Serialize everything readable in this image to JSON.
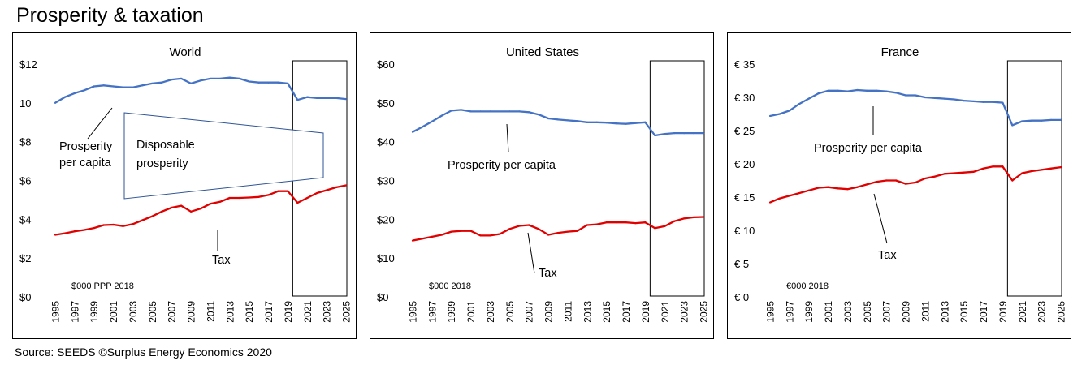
{
  "title": "Prosperity & taxation",
  "source": "Source: SEEDS ©Surplus Energy Economics 2020",
  "colors": {
    "prosperity": "#4472C4",
    "tax": "#E00000",
    "frame": "#000000",
    "callout": "#2F5597"
  },
  "chart_data": [
    {
      "type": "line",
      "title": "World",
      "unit_note": "$000 PPP 2018",
      "x": [
        1995,
        1996,
        1997,
        1998,
        1999,
        2000,
        2001,
        2002,
        2003,
        2004,
        2005,
        2006,
        2007,
        2008,
        2009,
        2010,
        2011,
        2012,
        2013,
        2014,
        2015,
        2016,
        2017,
        2018,
        2019,
        2020,
        2021,
        2022,
        2023,
        2024,
        2025
      ],
      "x_ticks": [
        "1995",
        "1997",
        "1999",
        "2001",
        "2003",
        "2005",
        "2007",
        "2009",
        "2011",
        "2013",
        "2015",
        "2017",
        "2019",
        "2021",
        "2023",
        "2025"
      ],
      "ylim": [
        0,
        12
      ],
      "y_ticks": [
        0,
        2,
        4,
        6,
        8,
        10,
        12
      ],
      "y_tick_labels": [
        "$0",
        "$2",
        "$4",
        "$6",
        "$8",
        "10",
        "$12"
      ],
      "highlight_from": 2019.5,
      "series": [
        {
          "name": "Prosperity per capita",
          "key": "prosperity",
          "values": [
            10.0,
            10.3,
            10.5,
            10.65,
            10.85,
            10.9,
            10.85,
            10.8,
            10.8,
            10.9,
            11.0,
            11.05,
            11.2,
            11.25,
            11.0,
            11.15,
            11.25,
            11.25,
            11.3,
            11.25,
            11.1,
            11.05,
            11.05,
            11.05,
            11.0,
            10.15,
            10.3,
            10.25,
            10.25,
            10.25,
            10.2
          ]
        },
        {
          "name": "Tax",
          "key": "tax",
          "values": [
            3.2,
            3.28,
            3.38,
            3.45,
            3.55,
            3.7,
            3.72,
            3.65,
            3.75,
            3.95,
            4.15,
            4.4,
            4.6,
            4.7,
            4.4,
            4.55,
            4.8,
            4.9,
            5.1,
            5.1,
            5.12,
            5.15,
            5.25,
            5.45,
            5.45,
            4.85,
            5.1,
            5.35,
            5.5,
            5.65,
            5.75
          ]
        }
      ],
      "annotations": [
        {
          "text_lines": [
            "Prosperity",
            "per capita"
          ],
          "target": "prosperity"
        },
        {
          "text_lines": [
            "Tax"
          ],
          "target": "tax"
        },
        {
          "text_lines": [
            "Disposable",
            "prosperity"
          ],
          "target": "gap"
        }
      ]
    },
    {
      "type": "line",
      "title": "United States",
      "unit_note": "$000 2018",
      "x": [
        1995,
        1996,
        1997,
        1998,
        1999,
        2000,
        2001,
        2002,
        2003,
        2004,
        2005,
        2006,
        2007,
        2008,
        2009,
        2010,
        2011,
        2012,
        2013,
        2014,
        2015,
        2016,
        2017,
        2018,
        2019,
        2020,
        2021,
        2022,
        2023,
        2024,
        2025
      ],
      "x_ticks": [
        "1995",
        "1997",
        "1999",
        "2001",
        "2003",
        "2005",
        "2007",
        "2009",
        "2011",
        "2013",
        "2015",
        "2017",
        "2019",
        "2021",
        "2023",
        "2025"
      ],
      "ylim": [
        0,
        60
      ],
      "y_ticks": [
        0,
        10,
        20,
        30,
        40,
        50,
        60
      ],
      "y_tick_labels": [
        "$0",
        "$10",
        "$20",
        "$30",
        "$40",
        "$50",
        "$60"
      ],
      "highlight_from": 2019.5,
      "series": [
        {
          "name": "Prosperity per capita",
          "key": "prosperity",
          "values": [
            42.5,
            43.8,
            45.2,
            46.7,
            48.0,
            48.2,
            47.8,
            47.8,
            47.8,
            47.8,
            47.8,
            47.8,
            47.6,
            47.0,
            46.0,
            45.7,
            45.5,
            45.3,
            45.0,
            45.0,
            44.9,
            44.7,
            44.6,
            44.8,
            45.0,
            41.6,
            42.0,
            42.2,
            42.2,
            42.2,
            42.2
          ]
        },
        {
          "name": "Tax",
          "key": "tax",
          "values": [
            14.5,
            15.0,
            15.5,
            16.0,
            16.8,
            17.0,
            17.0,
            15.8,
            15.8,
            16.2,
            17.5,
            18.3,
            18.5,
            17.5,
            16.0,
            16.5,
            16.8,
            17.0,
            18.5,
            18.7,
            19.2,
            19.2,
            19.2,
            19.0,
            19.2,
            17.7,
            18.2,
            19.5,
            20.2,
            20.5,
            20.6
          ]
        }
      ],
      "annotations": [
        {
          "text_lines": [
            "Prosperity per capita"
          ],
          "target": "prosperity"
        },
        {
          "text_lines": [
            "Tax"
          ],
          "target": "tax"
        }
      ]
    },
    {
      "type": "line",
      "title": "France",
      "unit_note": "€000 2018",
      "x": [
        1995,
        1996,
        1997,
        1998,
        1999,
        2000,
        2001,
        2002,
        2003,
        2004,
        2005,
        2006,
        2007,
        2008,
        2009,
        2010,
        2011,
        2012,
        2013,
        2014,
        2015,
        2016,
        2017,
        2018,
        2019,
        2020,
        2021,
        2022,
        2023,
        2024,
        2025
      ],
      "x_ticks": [
        "1995",
        "1997",
        "1999",
        "2001",
        "2003",
        "2005",
        "2007",
        "2009",
        "2011",
        "2013",
        "2015",
        "2017",
        "2019",
        "2021",
        "2023",
        "2025"
      ],
      "ylim": [
        0,
        35
      ],
      "y_ticks": [
        0,
        5,
        10,
        15,
        20,
        25,
        30,
        35
      ],
      "y_tick_labels": [
        "€ 0",
        "€ 5",
        "€ 10",
        "€ 15",
        "€ 20",
        "€ 25",
        "€ 30",
        "€ 35"
      ],
      "highlight_from": 2019.5,
      "series": [
        {
          "name": "Prosperity per capita",
          "key": "prosperity",
          "values": [
            27.2,
            27.5,
            28.0,
            29.0,
            29.8,
            30.6,
            31.0,
            31.0,
            30.9,
            31.1,
            31.0,
            31.0,
            30.9,
            30.7,
            30.3,
            30.3,
            30.0,
            29.9,
            29.8,
            29.7,
            29.5,
            29.4,
            29.3,
            29.3,
            29.2,
            25.8,
            26.4,
            26.5,
            26.5,
            26.6,
            26.6
          ]
        },
        {
          "name": "Tax",
          "key": "tax",
          "values": [
            14.2,
            14.8,
            15.2,
            15.6,
            16.0,
            16.4,
            16.5,
            16.3,
            16.2,
            16.5,
            16.9,
            17.3,
            17.5,
            17.5,
            17.0,
            17.2,
            17.8,
            18.1,
            18.5,
            18.6,
            18.7,
            18.8,
            19.3,
            19.6,
            19.6,
            17.5,
            18.6,
            18.9,
            19.1,
            19.3,
            19.5
          ]
        }
      ],
      "annotations": [
        {
          "text_lines": [
            "Prosperity per capita"
          ],
          "target": "prosperity"
        },
        {
          "text_lines": [
            "Tax"
          ],
          "target": "tax"
        }
      ]
    }
  ]
}
